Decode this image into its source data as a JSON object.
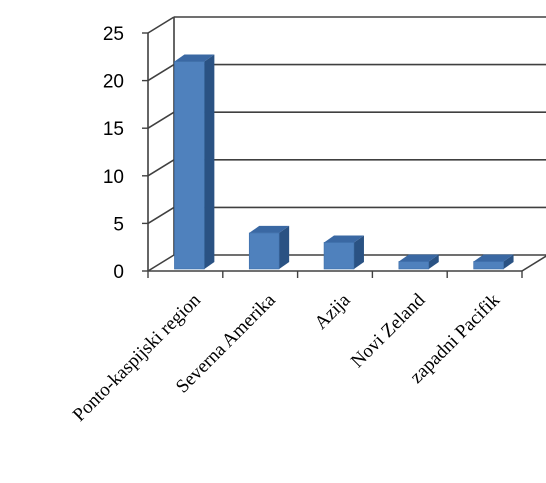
{
  "chart_data": {
    "type": "bar",
    "style": "3d-column",
    "title": "",
    "xlabel": "",
    "ylabel": "",
    "categories": [
      "Ponto-kaspijski region",
      "Severna Amerika",
      "Azija",
      "Novi Zeland",
      "zapadni Pacifik"
    ],
    "values": [
      22,
      4,
      3,
      1,
      1
    ],
    "ylim": [
      0,
      25
    ],
    "yticks": [
      0,
      5,
      10,
      15,
      20,
      25
    ],
    "ytick_labels": [
      "0",
      "5",
      "10",
      "15",
      "20",
      "25"
    ],
    "grid": true,
    "legend": "none",
    "colors": {
      "bar_front": "#4f81bd",
      "bar_side": "#2a5283",
      "bar_top": "#3a68a3",
      "gridline": "#404040",
      "text": "#000000"
    }
  }
}
